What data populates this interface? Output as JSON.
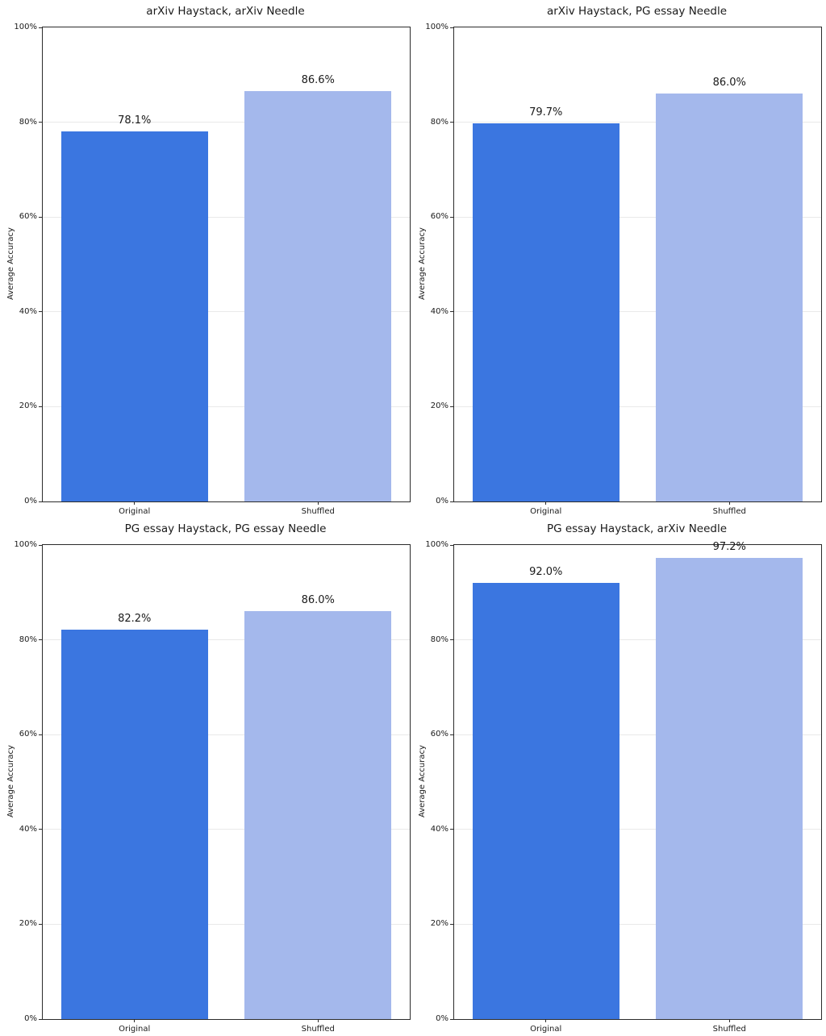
{
  "figure": {
    "ylabel": "Average Accuracy",
    "categories": [
      "Original",
      "Shuffled"
    ],
    "ytick_labels": [
      "0%",
      "20%",
      "40%",
      "60%",
      "80%",
      "100%"
    ],
    "colors": {
      "original_bar": "#3b76e0",
      "shuffled_bar": "#a4b8ec",
      "gridline": "#e9e9e9",
      "spine": "#2b2b2b",
      "text": "#1a1a1a",
      "background": "#ffffff"
    }
  },
  "chart_data": [
    {
      "type": "bar",
      "title": "arXiv Haystack, arXiv Needle",
      "categories": [
        "Original",
        "Shuffled"
      ],
      "values": [
        78.1,
        86.6
      ],
      "value_labels": [
        "78.1%",
        "86.6%"
      ],
      "xlabel": "",
      "ylabel": "Average Accuracy",
      "ylim": [
        0,
        100
      ],
      "yticks_percent": [
        0,
        20,
        40,
        60,
        80,
        100
      ],
      "grid": true,
      "legend": false
    },
    {
      "type": "bar",
      "title": "arXiv Haystack, PG essay Needle",
      "categories": [
        "Original",
        "Shuffled"
      ],
      "values": [
        79.7,
        86.0
      ],
      "value_labels": [
        "79.7%",
        "86.0%"
      ],
      "xlabel": "",
      "ylabel": "Average Accuracy",
      "ylim": [
        0,
        100
      ],
      "yticks_percent": [
        0,
        20,
        40,
        60,
        80,
        100
      ],
      "grid": true,
      "legend": false
    },
    {
      "type": "bar",
      "title": "PG essay Haystack, PG essay Needle",
      "categories": [
        "Original",
        "Shuffled"
      ],
      "values": [
        82.2,
        86.0
      ],
      "value_labels": [
        "82.2%",
        "86.0%"
      ],
      "xlabel": "",
      "ylabel": "Average Accuracy",
      "ylim": [
        0,
        100
      ],
      "yticks_percent": [
        0,
        20,
        40,
        60,
        80,
        100
      ],
      "grid": true,
      "legend": false
    },
    {
      "type": "bar",
      "title": "PG essay Haystack, arXiv Needle",
      "categories": [
        "Original",
        "Shuffled"
      ],
      "values": [
        92.0,
        97.2
      ],
      "value_labels": [
        "92.0%",
        "97.2%"
      ],
      "xlabel": "",
      "ylabel": "Average Accuracy",
      "ylim": [
        0,
        100
      ],
      "yticks_percent": [
        0,
        20,
        40,
        60,
        80,
        100
      ],
      "grid": true,
      "legend": false
    }
  ]
}
